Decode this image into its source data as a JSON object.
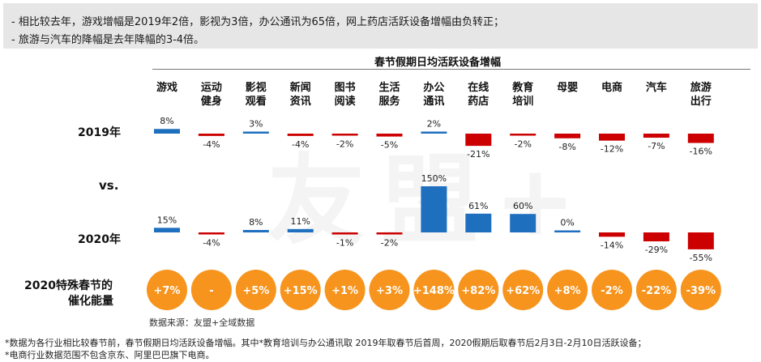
{
  "summary": {
    "line1": "-  相比较去年，游戏增幅是2019年2倍，影视为3倍，办公通讯为65倍，网上药店活跃设备增幅由负转正；",
    "line2": "-  旅游与汽车的降幅是去年降幅的3-4倍。"
  },
  "row_labels": {
    "y2019": "2019年",
    "vs": "vs.",
    "y2020": "2020年",
    "catalyst_l1": "2020特殊春节的",
    "catalyst_l2": "催化能量"
  },
  "source": "数据来源：友盟+全域数据",
  "watermark": "友盟+",
  "footnotes": [
    "*数据为各行业相比较春节前，春节假期日均活跃设备增幅。其中*教育培训与办公通讯取 2019年取春节后首周，2020假期后取春节后2月3日-2月10日活跃设备；",
    "*电商行业数据范围不包含京东、阿里巴巴旗下电商。"
  ],
  "colors": {
    "positive": "#1f6fbf",
    "negative": "#cc0000",
    "circle": "#f7941d",
    "circle_text": "#ffffff",
    "panel": "#e6e6e6"
  },
  "chart_data": {
    "type": "bar",
    "title": "春节假期日均活跃设备增幅",
    "categories": [
      [
        "游戏"
      ],
      [
        "运动",
        "健身"
      ],
      [
        "影视",
        "观看"
      ],
      [
        "新闻",
        "资讯"
      ],
      [
        "图书",
        "阅读"
      ],
      [
        "生活",
        "服务"
      ],
      [
        "办公",
        "通讯"
      ],
      [
        "在线",
        "药店"
      ],
      [
        "教育",
        "培训"
      ],
      [
        "母婴"
      ],
      [
        "电商"
      ],
      [
        "汽车"
      ],
      [
        "旅游",
        "出行"
      ]
    ],
    "series": [
      {
        "name": "2019年",
        "values": [
          8,
          -4,
          3,
          -4,
          -2,
          -5,
          2,
          -21,
          -2,
          -8,
          -12,
          -7,
          -16
        ],
        "labels": [
          "8%",
          "-4%",
          "3%",
          "-4%",
          "-2%",
          "-5%",
          "2%",
          "-21%",
          "-2%",
          "-8%",
          "-12%",
          "-7%",
          "-16%"
        ]
      },
      {
        "name": "2020年",
        "values": [
          15,
          -4,
          8,
          11,
          -1,
          -2,
          150,
          61,
          60,
          0,
          -14,
          -29,
          -55
        ],
        "labels": [
          "15%",
          "-4%",
          "8%",
          "11%",
          "-1%",
          "-2%",
          "150%",
          "61%",
          "60%",
          "0%",
          "-14%",
          "-29%",
          "-55%"
        ]
      }
    ],
    "catalyst": [
      "+7%",
      "-",
      "+5%",
      "+15%",
      "+1%",
      "+3%",
      "+148%",
      "+82%",
      "+62%",
      "+8%",
      "-2%",
      "-22%",
      "-39%"
    ]
  }
}
